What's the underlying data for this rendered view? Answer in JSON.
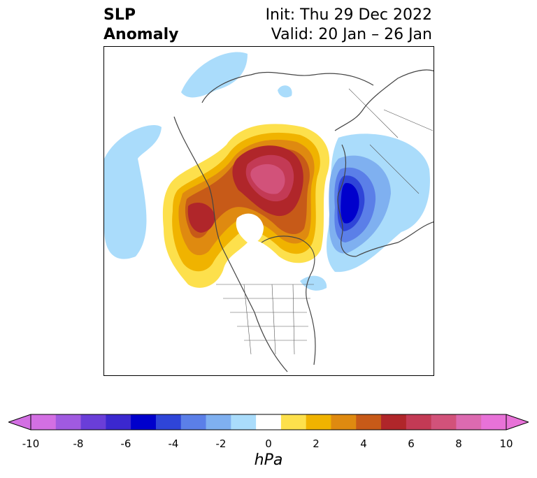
{
  "title": {
    "left_line1": "SLP",
    "left_line2": "Anomaly",
    "init": "Init: Thu 29 Dec 2022",
    "valid": "Valid: 20 Jan – 26 Jan"
  },
  "colorbar": {
    "unit": "hPa",
    "ticks": [
      "-10",
      "-8",
      "-6",
      "-4",
      "-2",
      "0",
      "2",
      "4",
      "6",
      "8",
      "10"
    ],
    "colors": [
      "#d36fe3",
      "#a05ae0",
      "#6a3ed8",
      "#3b28cf",
      "#0000cc",
      "#2f45d8",
      "#5b7fe8",
      "#7fb0f0",
      "#aadcfb",
      "#ffffff",
      "#fde04c",
      "#f0b300",
      "#df8a10",
      "#c75a18",
      "#b0262a",
      "#c33a55",
      "#d2527a",
      "#dc6ab0",
      "#e872d8"
    ],
    "min_color": "#d36fe3",
    "max_color": "#e872d8"
  },
  "map": {
    "projection": "polar-stereographic",
    "region": "Northern Hemisphere / North America"
  }
}
